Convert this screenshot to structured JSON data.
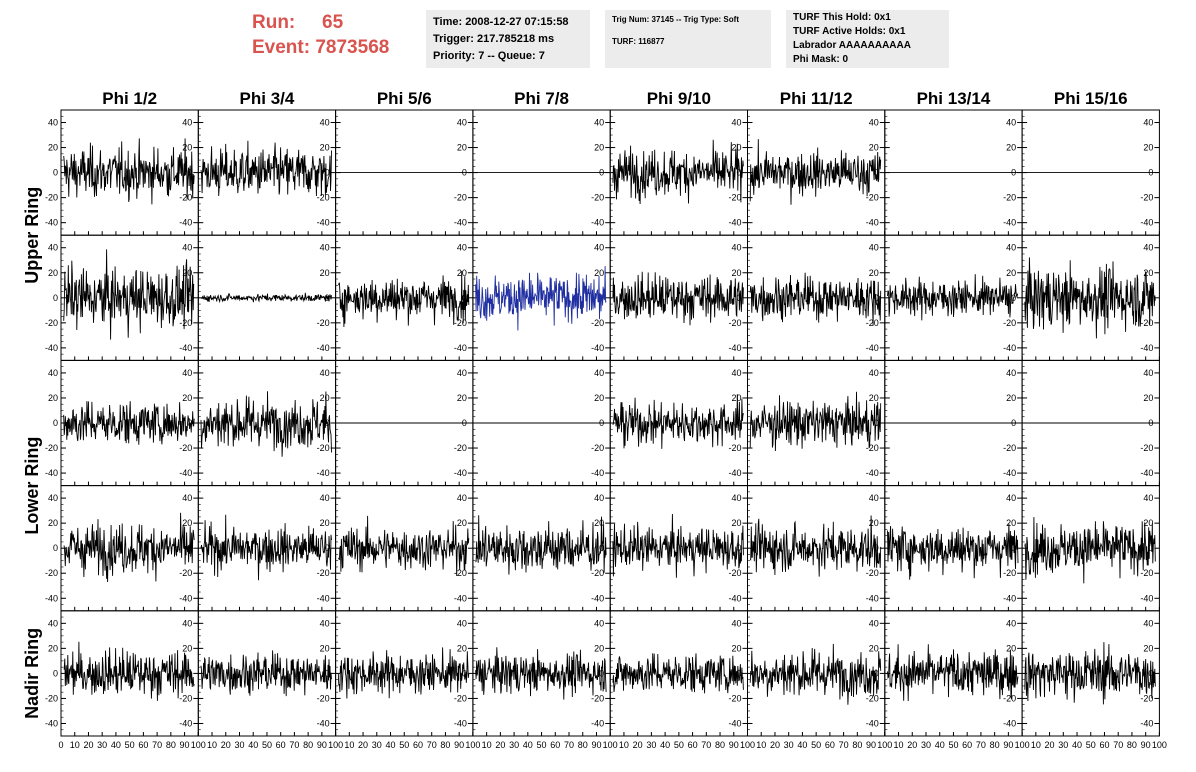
{
  "header": {
    "run_label": "Run:",
    "run_value": "65",
    "event_label": "Event:",
    "event_value": "7873568",
    "run_color": "#d9534f"
  },
  "info_time": {
    "time": "Time: 2008-12-27 07:15:58",
    "trigger": "Trigger: 217.785218 ms",
    "priority": "Priority: 7 -- Queue: 7"
  },
  "info_trig": {
    "trig": "Trig Num: 37145 -- Trig Type: Soft",
    "turf": "TURF: 116877"
  },
  "info_turf": {
    "hold": "TURF This Hold: 0x1",
    "active": "TURF Active Holds: 0x1",
    "labrador": "Labrador AAAAAAAAAA",
    "phimask": "Phi Mask: 0"
  },
  "chart_data": {
    "type": "line",
    "columns": [
      "Phi 1/2",
      "Phi 3/4",
      "Phi 5/6",
      "Phi 7/8",
      "Phi 9/10",
      "Phi 11/12",
      "Phi 13/14",
      "Phi 15/16"
    ],
    "row_groups": [
      {
        "label": "Upper Ring",
        "rows": [
          0,
          1
        ]
      },
      {
        "label": "Lower Ring",
        "rows": [
          2,
          3
        ]
      },
      {
        "label": "Nadir Ring",
        "rows": [
          4
        ]
      }
    ],
    "xlim": [
      0,
      100
    ],
    "ylim": [
      -50,
      50
    ],
    "x_ticks": [
      0,
      10,
      20,
      30,
      40,
      50,
      60,
      70,
      80,
      90,
      100
    ],
    "y_ticks": [
      -40,
      -20,
      0,
      20,
      40
    ],
    "samples": 260,
    "panels": [
      [
        {
          "amp": 14,
          "color": "#000000"
        },
        {
          "amp": 14,
          "color": "#000000"
        },
        {
          "amp": 0,
          "color": "#000000"
        },
        {
          "amp": 0,
          "color": "#000000"
        },
        {
          "amp": 13,
          "color": "#000000"
        },
        {
          "amp": 12,
          "color": "#000000"
        },
        {
          "amp": 0,
          "color": "#000000"
        },
        {
          "amp": 0,
          "color": "#000000"
        }
      ],
      [
        {
          "amp": 17,
          "color": "#000000"
        },
        {
          "amp": 2,
          "color": "#000000"
        },
        {
          "amp": 12,
          "color": "#000000"
        },
        {
          "amp": 13,
          "color": "#1f2ea0"
        },
        {
          "amp": 13,
          "color": "#000000"
        },
        {
          "amp": 12,
          "color": "#000000"
        },
        {
          "amp": 10,
          "color": "#000000"
        },
        {
          "amp": 17,
          "color": "#000000"
        }
      ],
      [
        {
          "amp": 12,
          "color": "#000000"
        },
        {
          "amp": 14,
          "color": "#000000"
        },
        {
          "amp": 0,
          "color": "#000000"
        },
        {
          "amp": 0,
          "color": "#000000"
        },
        {
          "amp": 12,
          "color": "#000000"
        },
        {
          "amp": 13,
          "color": "#000000"
        },
        {
          "amp": 0,
          "color": "#000000"
        },
        {
          "amp": 0,
          "color": "#000000"
        }
      ],
      [
        {
          "amp": 14,
          "color": "#000000"
        },
        {
          "amp": 12,
          "color": "#000000"
        },
        {
          "amp": 12,
          "color": "#000000"
        },
        {
          "amp": 14,
          "color": "#000000"
        },
        {
          "amp": 12,
          "color": "#000000"
        },
        {
          "amp": 13,
          "color": "#000000"
        },
        {
          "amp": 13,
          "color": "#000000"
        },
        {
          "amp": 14,
          "color": "#000000"
        }
      ],
      [
        {
          "amp": 13,
          "color": "#000000"
        },
        {
          "amp": 11,
          "color": "#000000"
        },
        {
          "amp": 11,
          "color": "#000000"
        },
        {
          "amp": 11,
          "color": "#000000"
        },
        {
          "amp": 11,
          "color": "#000000"
        },
        {
          "amp": 13,
          "color": "#000000"
        },
        {
          "amp": 13,
          "color": "#000000"
        },
        {
          "amp": 14,
          "color": "#000000"
        }
      ]
    ]
  }
}
